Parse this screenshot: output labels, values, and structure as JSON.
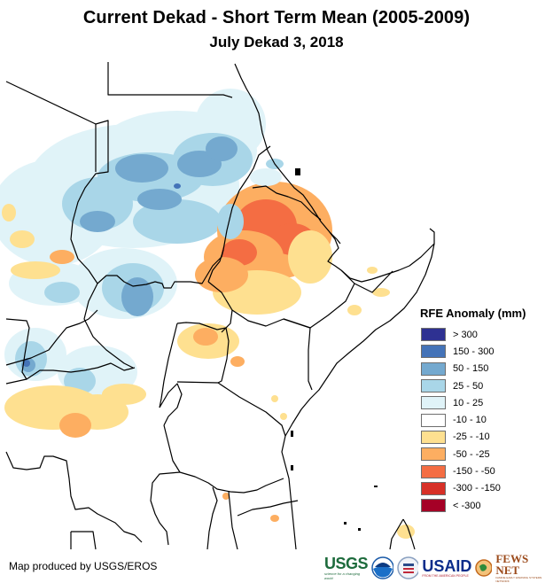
{
  "header": {
    "title": "Current Dekad - Short Term Mean (2005-2009)",
    "subtitle": "July Dekad 3, 2018"
  },
  "map": {
    "region": "East Africa / Horn of Africa",
    "variable": "Rainfall Estimate (RFE) anomaly",
    "background_color": "#ffffff",
    "border_color": "#000000"
  },
  "legend": {
    "title": "RFE Anomaly (mm)",
    "items": [
      {
        "label": "> 300",
        "color": "#2e3192"
      },
      {
        "label": "150 - 300",
        "color": "#4473b8"
      },
      {
        "label": "50 - 150",
        "color": "#74a9cf"
      },
      {
        "label": "25 - 50",
        "color": "#a9d6e8"
      },
      {
        "label": "10 - 25",
        "color": "#e0f3f8"
      },
      {
        "label": "-10 - 10",
        "color": "#ffffff"
      },
      {
        "label": "-25 - -10",
        "color": "#fee090"
      },
      {
        "label": "-50 - -25",
        "color": "#fdae61"
      },
      {
        "label": "-150 - -50",
        "color": "#f46d43"
      },
      {
        "label": "-300 - -150",
        "color": "#d73027"
      },
      {
        "label": "< -300",
        "color": "#a50026"
      }
    ]
  },
  "footer": {
    "credit": "Map produced by USGS/EROS",
    "logos": [
      {
        "name": "USGS",
        "tagline": "science for a changing world"
      },
      {
        "name": "NOAA"
      },
      {
        "name": "USAID seal"
      },
      {
        "name": "USAID",
        "tagline": "FROM THE AMERICAN PEOPLE"
      },
      {
        "name": "FEWS NET",
        "tagline": "FAMINE EARLY WARNING SYSTEMS NETWORK"
      }
    ]
  }
}
